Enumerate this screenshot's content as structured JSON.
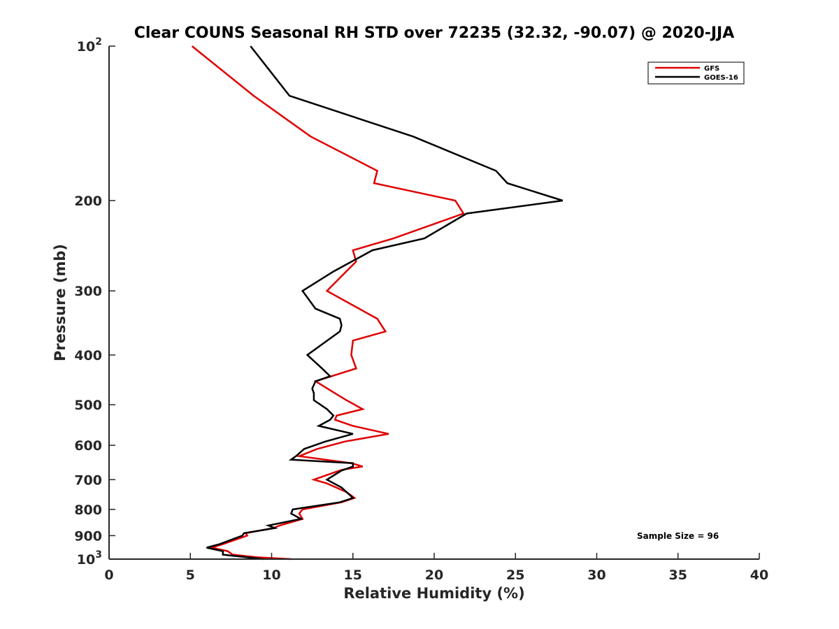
{
  "chart_data": {
    "type": "line",
    "title": "Clear COUNS Seasonal RH STD over 72235 (32.32, -90.07) @ 2020-JJA",
    "xlabel": "Relative Humidity (%)",
    "ylabel": "Pressure (mb)",
    "xlim": [
      0,
      40
    ],
    "ylim": [
      100,
      1000
    ],
    "yscale": "log",
    "y_reversed": true,
    "grid": false,
    "legend_position": "top-right",
    "x_ticks": [
      {
        "value": 0,
        "label": "0"
      },
      {
        "value": 5,
        "label": "5"
      },
      {
        "value": 10,
        "label": "10"
      },
      {
        "value": 15,
        "label": "15"
      },
      {
        "value": 20,
        "label": "20"
      },
      {
        "value": 25,
        "label": "25"
      },
      {
        "value": 30,
        "label": "30"
      },
      {
        "value": 35,
        "label": "35"
      },
      {
        "value": 40,
        "label": "40"
      }
    ],
    "y_ticks": [
      {
        "value": 100,
        "base": "10",
        "exp": "2"
      },
      {
        "value": 200,
        "label": "200"
      },
      {
        "value": 300,
        "label": "300"
      },
      {
        "value": 400,
        "label": "400"
      },
      {
        "value": 500,
        "label": "500"
      },
      {
        "value": 600,
        "label": "600"
      },
      {
        "value": 700,
        "label": "700"
      },
      {
        "value": 800,
        "label": "800"
      },
      {
        "value": 900,
        "label": "900"
      },
      {
        "value": 1000,
        "base": "10",
        "exp": "3"
      }
    ],
    "annotation": "Sample Size = 96",
    "series": [
      {
        "name": "GFS",
        "color": "#e00000",
        "points": [
          [
            5.1,
            100
          ],
          [
            8.9,
            125
          ],
          [
            12.4,
            150
          ],
          [
            16.5,
            175
          ],
          [
            16.3,
            185
          ],
          [
            21.3,
            200
          ],
          [
            21.8,
            212
          ],
          [
            17.5,
            237
          ],
          [
            15.0,
            250
          ],
          [
            15.2,
            263
          ],
          [
            13.4,
            300
          ],
          [
            16.5,
            340
          ],
          [
            17.0,
            360
          ],
          [
            15.0,
            375
          ],
          [
            14.9,
            400
          ],
          [
            15.2,
            425
          ],
          [
            12.7,
            450
          ],
          [
            13.9,
            475
          ],
          [
            14.6,
            490
          ],
          [
            15.6,
            510
          ],
          [
            14.0,
            525
          ],
          [
            13.9,
            535
          ],
          [
            15.0,
            550
          ],
          [
            17.2,
            570
          ],
          [
            14.5,
            590
          ],
          [
            12.8,
            610
          ],
          [
            11.7,
            630
          ],
          [
            14.9,
            650
          ],
          [
            15.6,
            660
          ],
          [
            14.3,
            670
          ],
          [
            12.6,
            700
          ],
          [
            13.4,
            712
          ],
          [
            14.6,
            740
          ],
          [
            15.1,
            760
          ],
          [
            14.3,
            775
          ],
          [
            11.9,
            800
          ],
          [
            11.7,
            815
          ],
          [
            11.9,
            835
          ],
          [
            10.5,
            860
          ],
          [
            10.1,
            870
          ],
          [
            8.4,
            890
          ],
          [
            8.5,
            900
          ],
          [
            7.0,
            935
          ],
          [
            6.3,
            950
          ],
          [
            7.3,
            965
          ],
          [
            7.6,
            980
          ],
          [
            9.1,
            992
          ],
          [
            11.2,
            1000
          ]
        ]
      },
      {
        "name": "GOES-16",
        "color": "#000000",
        "points": [
          [
            8.7,
            100
          ],
          [
            11.1,
            125
          ],
          [
            18.7,
            150
          ],
          [
            23.8,
            175
          ],
          [
            24.5,
            185
          ],
          [
            27.9,
            200
          ],
          [
            22.0,
            212
          ],
          [
            19.4,
            237
          ],
          [
            16.2,
            250
          ],
          [
            13.8,
            275
          ],
          [
            11.9,
            300
          ],
          [
            12.7,
            325
          ],
          [
            14.2,
            340
          ],
          [
            14.3,
            350
          ],
          [
            14.2,
            360
          ],
          [
            12.2,
            400
          ],
          [
            13.1,
            425
          ],
          [
            13.6,
            440
          ],
          [
            12.7,
            450
          ],
          [
            12.5,
            465
          ],
          [
            12.6,
            475
          ],
          [
            12.6,
            490
          ],
          [
            13.4,
            510
          ],
          [
            13.8,
            525
          ],
          [
            13.6,
            535
          ],
          [
            12.9,
            550
          ],
          [
            15.0,
            570
          ],
          [
            13.3,
            590
          ],
          [
            12.0,
            610
          ],
          [
            11.5,
            630
          ],
          [
            11.2,
            640
          ],
          [
            15.0,
            650
          ],
          [
            15.0,
            660
          ],
          [
            14.3,
            672
          ],
          [
            13.4,
            700
          ],
          [
            14.3,
            725
          ],
          [
            15.0,
            760
          ],
          [
            14.2,
            775
          ],
          [
            11.3,
            800
          ],
          [
            11.2,
            815
          ],
          [
            11.8,
            835
          ],
          [
            9.8,
            860
          ],
          [
            10.2,
            870
          ],
          [
            8.3,
            890
          ],
          [
            8.2,
            900
          ],
          [
            6.8,
            935
          ],
          [
            6.0,
            950
          ],
          [
            7.0,
            965
          ],
          [
            7.0,
            980
          ],
          [
            9.5,
            1000
          ]
        ]
      }
    ]
  }
}
